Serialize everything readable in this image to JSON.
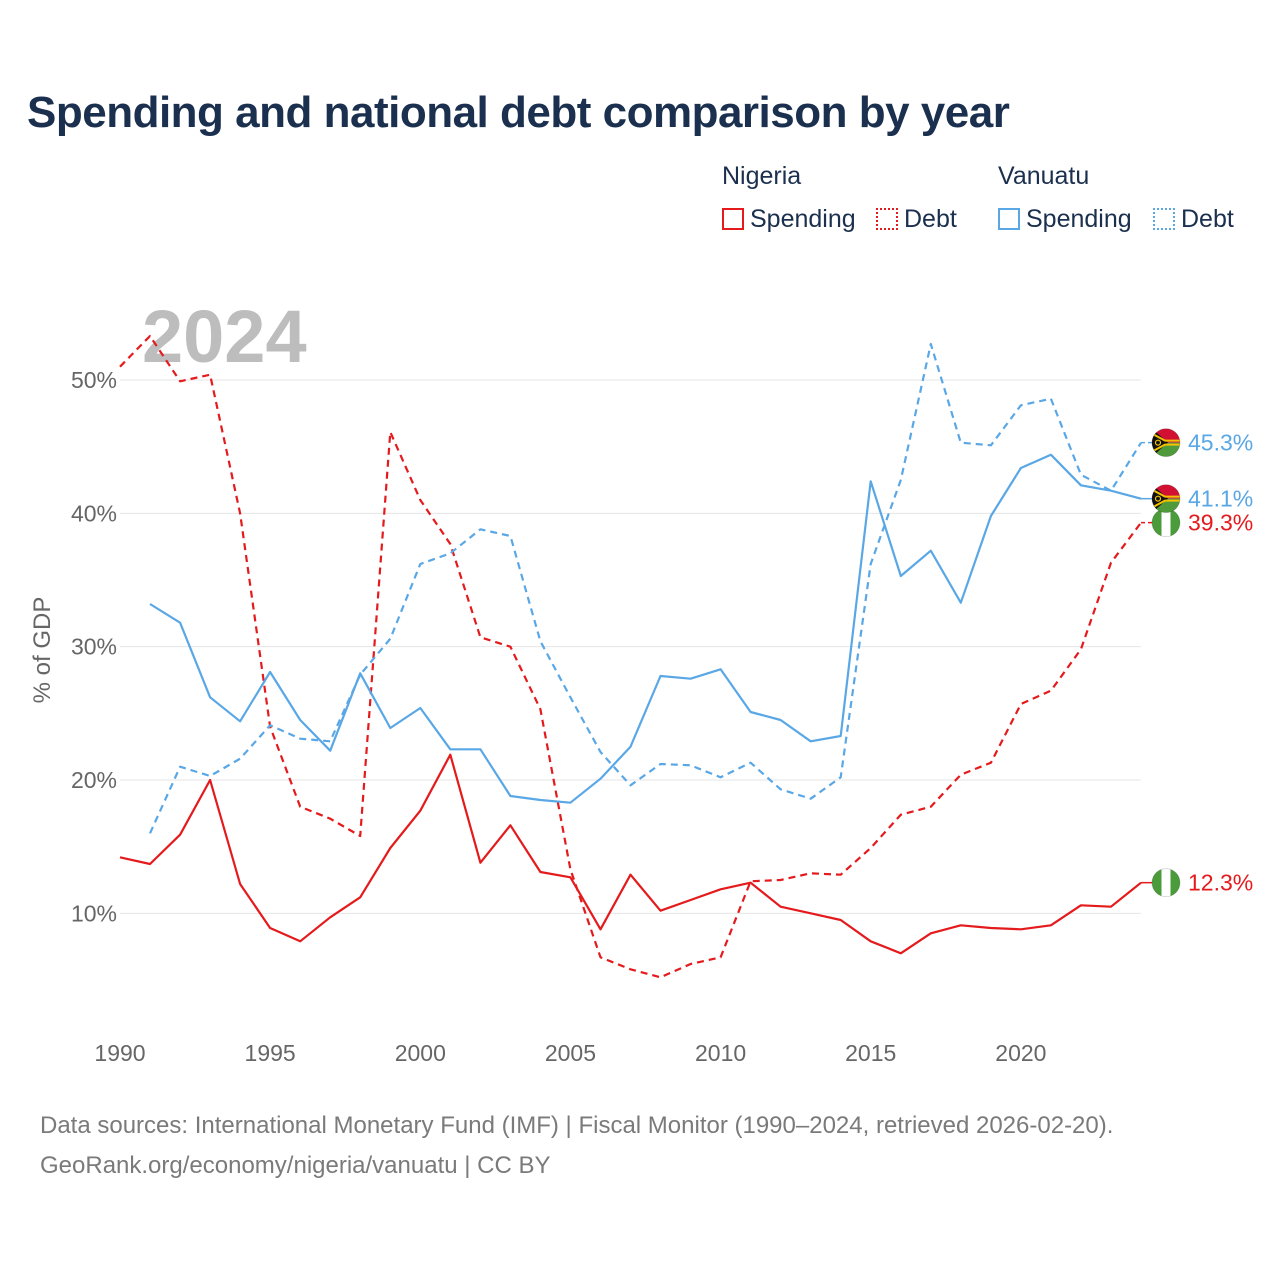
{
  "title": "Spending and national debt comparison by year",
  "legend": {
    "groups": [
      {
        "name": "Nigeria",
        "color": "#e41a1c",
        "items": [
          {
            "label": "Spending",
            "style": "solid"
          },
          {
            "label": "Debt",
            "style": "dotted"
          }
        ]
      },
      {
        "name": "Vanuatu",
        "color": "#5aa7e6",
        "items": [
          {
            "label": "Spending",
            "style": "solid"
          },
          {
            "label": "Debt",
            "style": "dotted"
          }
        ]
      }
    ]
  },
  "year_watermark": "2024",
  "footer": {
    "sources": "Data sources: International Monetary Fund (IMF) | Fiscal Monitor (1990–2024, retrieved 2026-02-20).",
    "link": "GeoRank.org/economy/nigeria/vanuatu | CC BY"
  },
  "chart_data": {
    "type": "line",
    "title": "Spending and national debt comparison by year",
    "xlabel": "",
    "ylabel": "% of GDP",
    "xlim": [
      1990,
      2024
    ],
    "ylim": [
      2,
      56
    ],
    "x_ticks": [
      1990,
      1995,
      2000,
      2005,
      2010,
      2015,
      2020
    ],
    "x_tick_labels": [
      "1990",
      "1995",
      "2000",
      "2005",
      "2010",
      "2015",
      "2020"
    ],
    "y_ticks": [
      10,
      20,
      30,
      40,
      50
    ],
    "y_tick_labels": [
      "10%",
      "20%",
      "30%",
      "40%",
      "50%"
    ],
    "grid": true,
    "series": [
      {
        "name": "Nigeria Spending",
        "country": "Nigeria",
        "color": "#e41a1c",
        "dash": "solid",
        "end_label": "12.3%",
        "flag": "nigeria-flag",
        "x": [
          1990,
          1991,
          1992,
          1993,
          1994,
          1995,
          1996,
          1997,
          1998,
          1999,
          2000,
          2001,
          2002,
          2003,
          2004,
          2005,
          2006,
          2007,
          2008,
          2009,
          2010,
          2011,
          2012,
          2013,
          2014,
          2015,
          2016,
          2017,
          2018,
          2019,
          2020,
          2021,
          2022,
          2023,
          2024
        ],
        "values": [
          14.2,
          13.7,
          15.9,
          20.0,
          12.2,
          8.9,
          7.9,
          9.7,
          11.2,
          14.9,
          17.7,
          21.9,
          13.8,
          16.6,
          13.1,
          12.7,
          8.8,
          12.9,
          10.2,
          11.0,
          11.8,
          12.3,
          10.5,
          10.0,
          9.5,
          7.9,
          7.0,
          8.5,
          9.1,
          8.9,
          8.8,
          9.1,
          10.6,
          10.5,
          12.3
        ]
      },
      {
        "name": "Nigeria Debt",
        "country": "Nigeria",
        "color": "#e41a1c",
        "dash": "dashed",
        "end_label": "39.3%",
        "flag": "nigeria-flag",
        "x": [
          1990,
          1991,
          1992,
          1993,
          1994,
          1995,
          1996,
          1997,
          1998,
          1999,
          2000,
          2001,
          2002,
          2003,
          2004,
          2005,
          2006,
          2007,
          2008,
          2009,
          2010,
          2011,
          2012,
          2013,
          2014,
          2015,
          2016,
          2017,
          2018,
          2019,
          2020,
          2021,
          2022,
          2023,
          2024
        ],
        "values": [
          51.0,
          53.3,
          49.9,
          50.4,
          40.0,
          24.0,
          18.0,
          17.1,
          15.8,
          46.1,
          41.0,
          37.7,
          30.7,
          30.0,
          25.3,
          13.3,
          6.7,
          5.8,
          5.2,
          6.2,
          6.7,
          12.4,
          12.5,
          13.0,
          12.9,
          14.9,
          17.4,
          18.0,
          20.4,
          21.3,
          25.7,
          26.7,
          29.8,
          36.3,
          39.3
        ]
      },
      {
        "name": "Vanuatu Spending",
        "country": "Vanuatu",
        "color": "#5aa7e6",
        "dash": "solid",
        "end_label": "41.1%",
        "flag": "vanuatu-flag",
        "x": [
          1991,
          1992,
          1993,
          1994,
          1995,
          1996,
          1997,
          1998,
          1999,
          2000,
          2001,
          2002,
          2003,
          2004,
          2005,
          2006,
          2007,
          2008,
          2009,
          2010,
          2011,
          2012,
          2013,
          2014,
          2015,
          2016,
          2017,
          2018,
          2019,
          2020,
          2021,
          2022,
          2023,
          2024
        ],
        "values": [
          33.2,
          31.8,
          26.2,
          24.4,
          28.1,
          24.5,
          22.2,
          28.0,
          23.9,
          25.4,
          22.3,
          22.3,
          18.8,
          18.5,
          18.3,
          20.1,
          22.5,
          27.8,
          27.6,
          28.3,
          25.1,
          24.5,
          22.9,
          23.3,
          42.4,
          35.3,
          37.2,
          33.3,
          39.8,
          43.4,
          44.4,
          42.1,
          41.7,
          41.1
        ]
      },
      {
        "name": "Vanuatu Debt",
        "country": "Vanuatu",
        "color": "#5aa7e6",
        "dash": "dashed",
        "end_label": "45.3%",
        "flag": "vanuatu-flag",
        "x": [
          1991,
          1992,
          1993,
          1994,
          1995,
          1996,
          1997,
          1998,
          1999,
          2000,
          2001,
          2002,
          2003,
          2004,
          2005,
          2006,
          2007,
          2008,
          2009,
          2010,
          2011,
          2012,
          2013,
          2014,
          2015,
          2016,
          2017,
          2018,
          2019,
          2020,
          2021,
          2022,
          2023,
          2024
        ],
        "values": [
          16.0,
          21.0,
          20.3,
          21.6,
          24.1,
          23.1,
          22.9,
          27.9,
          30.6,
          36.2,
          37.0,
          38.8,
          38.3,
          30.4,
          26.2,
          22.1,
          19.6,
          21.2,
          21.1,
          20.2,
          21.3,
          19.3,
          18.6,
          20.2,
          36.2,
          42.5,
          52.7,
          45.3,
          45.1,
          48.1,
          48.6,
          42.9,
          41.7,
          45.3
        ]
      }
    ]
  }
}
